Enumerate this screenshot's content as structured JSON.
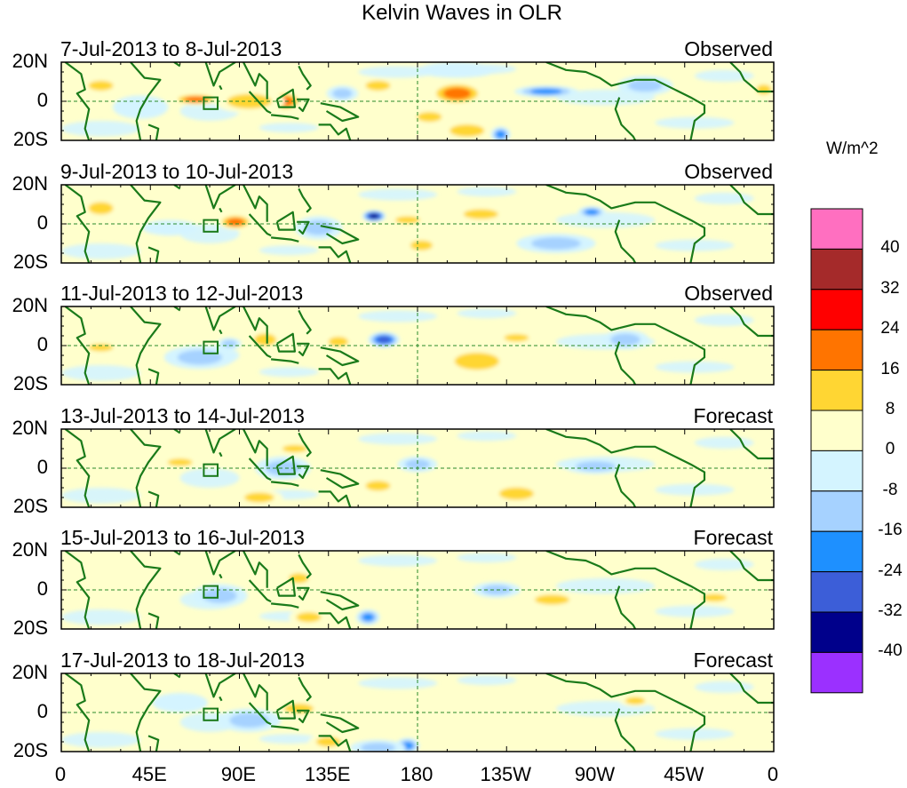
{
  "chart_data": {
    "type": "heatmap",
    "title": "Kelvin Waves in OLR",
    "units": "W/m^2",
    "x_tick_labels": [
      "0",
      "45E",
      "90E",
      "135E",
      "180",
      "135W",
      "90W",
      "45W",
      "0"
    ],
    "y_tick_labels": [
      "20N",
      "0",
      "20S"
    ],
    "x_range_deg_east": [
      0,
      360
    ],
    "y_range_deg": [
      -20,
      20
    ],
    "colorbar": {
      "levels": [
        "40",
        "32",
        "24",
        "16",
        "8",
        "0",
        "-8",
        "-16",
        "-24",
        "-32",
        "-40"
      ],
      "colors": [
        "#ff6fc0",
        "#a52a2a",
        "#ff0000",
        "#ff7400",
        "#ffd633",
        "#ffffcc",
        "#d4f4ff",
        "#a6d2ff",
        "#1e90ff",
        "#3c5ed8",
        "#00008b",
        "#9b30ff"
      ]
    },
    "panels": [
      {
        "period": "7-Jul-2013 to 8-Jul-2013",
        "status": "Observed",
        "anomalies": [
          {
            "lon": 200,
            "lat": 4,
            "value": 17,
            "rx": 14,
            "ry": 6
          },
          {
            "lon": 113,
            "lat": 0,
            "value": 21,
            "rx": 9,
            "ry": 5
          },
          {
            "lon": 68,
            "lat": 1,
            "value": 17,
            "rx": 12,
            "ry": 3
          },
          {
            "lon": 20,
            "lat": 8,
            "value": 9,
            "rx": 10,
            "ry": 4
          },
          {
            "lon": 95,
            "lat": 0,
            "value": 9,
            "rx": 18,
            "ry": 6
          },
          {
            "lon": 205,
            "lat": -15,
            "value": 12,
            "rx": 14,
            "ry": 5
          },
          {
            "lon": 186,
            "lat": -8,
            "value": 9,
            "rx": 10,
            "ry": 4
          },
          {
            "lon": 355,
            "lat": 6,
            "value": 10,
            "rx": 6,
            "ry": 4
          },
          {
            "lon": 160,
            "lat": 8,
            "value": 9,
            "rx": 10,
            "ry": 4
          },
          {
            "lon": 245,
            "lat": 5,
            "value": -17,
            "rx": 16,
            "ry": 3
          },
          {
            "lon": 222,
            "lat": -17,
            "value": -20,
            "rx": 5,
            "ry": 4
          },
          {
            "lon": 142,
            "lat": 4,
            "value": -10,
            "rx": 8,
            "ry": 4
          },
          {
            "lon": 295,
            "lat": 8,
            "value": -10,
            "rx": 14,
            "ry": 5
          },
          {
            "lon": 200,
            "lat": 16,
            "value": -6,
            "rx": 20,
            "ry": 4
          },
          {
            "lon": 40,
            "lat": -3,
            "value": -8,
            "rx": 14,
            "ry": 6
          }
        ]
      },
      {
        "period": "9-Jul-2013 to 10-Jul-2013",
        "status": "Observed",
        "anomalies": [
          {
            "lon": 88,
            "lat": 1,
            "value": 20,
            "rx": 9,
            "ry": 4
          },
          {
            "lon": 212,
            "lat": 5,
            "value": 12,
            "rx": 14,
            "ry": 4
          },
          {
            "lon": 182,
            "lat": -11,
            "value": 14,
            "rx": 9,
            "ry": 4
          },
          {
            "lon": 175,
            "lat": 2,
            "value": 9,
            "rx": 10,
            "ry": 3
          },
          {
            "lon": 20,
            "lat": 8,
            "value": 9,
            "rx": 10,
            "ry": 5
          },
          {
            "lon": 158,
            "lat": 4,
            "value": -34,
            "rx": 6,
            "ry": 3
          },
          {
            "lon": 268,
            "lat": 6,
            "value": -20,
            "rx": 7,
            "ry": 3
          },
          {
            "lon": 130,
            "lat": -2,
            "value": -10,
            "rx": 12,
            "ry": 6
          },
          {
            "lon": 250,
            "lat": -10,
            "value": -9,
            "rx": 20,
            "ry": 5
          },
          {
            "lon": 55,
            "lat": -2,
            "value": -8,
            "rx": 14,
            "ry": 4
          }
        ]
      },
      {
        "period": "11-Jul-2013 to 12-Jul-2013",
        "status": "Observed",
        "anomalies": [
          {
            "lon": 163,
            "lat": 3,
            "value": -26,
            "rx": 8,
            "ry": 4
          },
          {
            "lon": 140,
            "lat": 2,
            "value": 14,
            "rx": 8,
            "ry": 4
          },
          {
            "lon": 103,
            "lat": 3,
            "value": 10,
            "rx": 9,
            "ry": 5
          },
          {
            "lon": 210,
            "lat": -8,
            "value": 9,
            "rx": 18,
            "ry": 7
          },
          {
            "lon": 230,
            "lat": 4,
            "value": 9,
            "rx": 10,
            "ry": 3
          },
          {
            "lon": 85,
            "lat": 1,
            "value": -14,
            "rx": 6,
            "ry": 3
          },
          {
            "lon": 70,
            "lat": -6,
            "value": -9,
            "rx": 18,
            "ry": 6
          },
          {
            "lon": 285,
            "lat": 3,
            "value": -10,
            "rx": 12,
            "ry": 5
          },
          {
            "lon": 20,
            "lat": -1,
            "value": 9,
            "rx": 10,
            "ry": 3
          }
        ]
      },
      {
        "period": "13-Jul-2013 to 14-Jul-2013",
        "status": "Forecast",
        "anomalies": [
          {
            "lon": 112,
            "lat": 0,
            "value": -13,
            "rx": 14,
            "ry": 6
          },
          {
            "lon": 180,
            "lat": 2,
            "value": -10,
            "rx": 10,
            "ry": 4
          },
          {
            "lon": 230,
            "lat": -13,
            "value": 10,
            "rx": 14,
            "ry": 5
          },
          {
            "lon": 160,
            "lat": -9,
            "value": 9,
            "rx": 10,
            "ry": 4
          },
          {
            "lon": 60,
            "lat": 3,
            "value": 9,
            "rx": 10,
            "ry": 3
          },
          {
            "lon": 118,
            "lat": 10,
            "value": 9,
            "rx": 10,
            "ry": 3
          },
          {
            "lon": 100,
            "lat": -15,
            "value": 9,
            "rx": 12,
            "ry": 4
          },
          {
            "lon": 270,
            "lat": 1,
            "value": -9,
            "rx": 16,
            "ry": 4
          }
        ]
      },
      {
        "period": "15-Jul-2013 to 16-Jul-2013",
        "status": "Forecast",
        "anomalies": [
          {
            "lon": 155,
            "lat": -14,
            "value": -22,
            "rx": 6,
            "ry": 4
          },
          {
            "lon": 120,
            "lat": 6,
            "value": 9,
            "rx": 8,
            "ry": 4
          },
          {
            "lon": 125,
            "lat": -14,
            "value": 12,
            "rx": 10,
            "ry": 4
          },
          {
            "lon": 80,
            "lat": -3,
            "value": -9,
            "rx": 14,
            "ry": 6
          },
          {
            "lon": 248,
            "lat": -5,
            "value": 9,
            "rx": 14,
            "ry": 4
          },
          {
            "lon": 220,
            "lat": 0,
            "value": -9,
            "rx": 12,
            "ry": 4
          },
          {
            "lon": 330,
            "lat": -4,
            "value": 9,
            "rx": 10,
            "ry": 3
          }
        ]
      },
      {
        "period": "17-Jul-2013 to 18-Jul-2013",
        "status": "Forecast",
        "anomalies": [
          {
            "lon": 175,
            "lat": -17,
            "value": -22,
            "rx": 6,
            "ry": 4
          },
          {
            "lon": 160,
            "lat": -18,
            "value": -9,
            "rx": 14,
            "ry": 4
          },
          {
            "lon": 135,
            "lat": -15,
            "value": 12,
            "rx": 10,
            "ry": 4
          },
          {
            "lon": 120,
            "lat": 2,
            "value": 9,
            "rx": 12,
            "ry": 4
          },
          {
            "lon": 95,
            "lat": -4,
            "value": -9,
            "rx": 16,
            "ry": 6
          },
          {
            "lon": 290,
            "lat": 6,
            "value": 9,
            "rx": 8,
            "ry": 3
          },
          {
            "lon": 60,
            "lat": 5,
            "value": -8,
            "rx": 14,
            "ry": 5
          }
        ]
      }
    ]
  }
}
